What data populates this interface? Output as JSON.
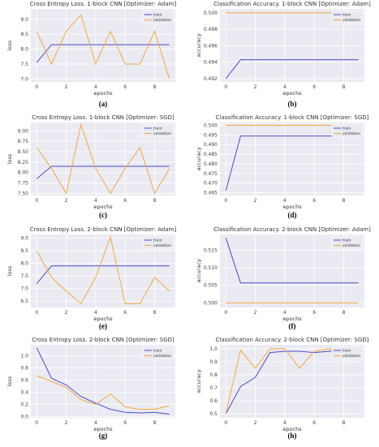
{
  "colors": {
    "train": "#4b4bc8",
    "validation": "#f5a93c",
    "plot_bg": "#eaeaf2",
    "grid": "#ffffff"
  },
  "chart_data": [
    {
      "type": "line",
      "title": "Cross Entropy Loss.  1-block CNN [Optimizer: Adam]",
      "xlabel": "epochs",
      "ylabel": "loss",
      "caption": "(a)",
      "xlim": [
        -0.4,
        9.4
      ],
      "ylim": [
        6.9,
        9.35
      ],
      "xticks": [
        0,
        2,
        4,
        6,
        8
      ],
      "xtick_labels": [
        "0",
        "2",
        "4",
        "6",
        "8"
      ],
      "yticks": [
        7.0,
        7.5,
        8.0,
        8.5,
        9.0
      ],
      "ytick_labels": [
        "7.0",
        "7.5",
        "8.0",
        "8.5",
        "9.0"
      ],
      "legend": {
        "position": "top-right",
        "labels": [
          "train",
          "validation"
        ]
      },
      "x": [
        0,
        1,
        2,
        3,
        4,
        5,
        6,
        7,
        8,
        9
      ],
      "series": [
        {
          "name": "train",
          "values": [
            7.55,
            8.15,
            8.15,
            8.15,
            8.15,
            8.15,
            8.15,
            8.15,
            8.15,
            8.15
          ]
        },
        {
          "name": "validation",
          "values": [
            8.6,
            7.5,
            8.6,
            9.15,
            7.5,
            8.6,
            7.5,
            7.5,
            8.6,
            7.0
          ]
        }
      ]
    },
    {
      "type": "line",
      "title": "Classification Accuracy.  1-block CNN [Optimizer: Adam]",
      "xlabel": "epochs",
      "ylabel": "accuracy",
      "caption": "(b)",
      "xlim": [
        -0.4,
        9.4
      ],
      "ylim": [
        0.9915,
        0.5002
      ],
      "xticks": [
        0,
        2,
        4,
        6,
        8
      ],
      "xtick_labels": [
        "0",
        "2",
        "4",
        "6",
        "8"
      ],
      "yticks": [
        0.492,
        0.494,
        0.496,
        0.498,
        0.5
      ],
      "ytick_labels": [
        "0.492",
        "0.494",
        "0.496",
        "0.498",
        "0.500"
      ],
      "legend": {
        "position": "top-right",
        "labels": [
          "train",
          "validation"
        ]
      },
      "x": [
        0,
        1,
        2,
        3,
        4,
        5,
        6,
        7,
        8,
        9
      ],
      "series": [
        {
          "name": "train",
          "values": [
            0.492,
            0.4943,
            0.4943,
            0.4943,
            0.4943,
            0.4943,
            0.4943,
            0.4943,
            0.4943,
            0.4943
          ]
        },
        {
          "name": "validation",
          "values": [
            0.5,
            0.5,
            0.5,
            0.5,
            0.5,
            0.5,
            0.5,
            0.5,
            0.5,
            0.5
          ]
        }
      ]
    },
    {
      "type": "line",
      "title": "Cross Entropy Loss.  1-block CNN [Optimizer: SGD]",
      "xlabel": "epochs",
      "ylabel": "loss",
      "caption": "(c)",
      "xlim": [
        -0.4,
        9.4
      ],
      "ylim": [
        7.45,
        9.2
      ],
      "xticks": [
        0,
        2,
        4,
        6,
        8
      ],
      "xtick_labels": [
        "0",
        "2",
        "4",
        "6",
        "8"
      ],
      "yticks": [
        7.5,
        7.75,
        8.0,
        8.25,
        8.5,
        8.75,
        9.0
      ],
      "ytick_labels": [
        "7.50",
        "7.75",
        "8.00",
        "8.25",
        "8.50",
        "8.75",
        "9.00"
      ],
      "legend": {
        "position": "top-right",
        "labels": [
          "train",
          "validation"
        ]
      },
      "x": [
        0,
        1,
        2,
        3,
        4,
        5,
        6,
        7,
        8,
        9
      ],
      "series": [
        {
          "name": "train",
          "values": [
            7.85,
            8.15,
            8.15,
            8.15,
            8.15,
            8.15,
            8.15,
            8.15,
            8.15,
            8.15
          ]
        },
        {
          "name": "validation",
          "values": [
            8.6,
            8.1,
            7.5,
            9.15,
            8.1,
            7.5,
            8.1,
            8.6,
            7.5,
            8.1
          ]
        }
      ]
    },
    {
      "type": "line",
      "title": "Classification Accuracy.  1-block CNN [Optimizer: SGD]",
      "xlabel": "epochs",
      "ylabel": "accuracy",
      "caption": "(d)",
      "xlim": [
        -0.4,
        9.4
      ],
      "ylim": [
        0.4635,
        0.5015
      ],
      "xticks": [
        0,
        2,
        4,
        6,
        8
      ],
      "xtick_labels": [
        "0",
        "2",
        "4",
        "6",
        "8"
      ],
      "yticks": [
        0.465,
        0.47,
        0.475,
        0.48,
        0.485,
        0.49,
        0.495,
        0.5
      ],
      "ytick_labels": [
        "0.465",
        "0.470",
        "0.475",
        "0.480",
        "0.485",
        "0.490",
        "0.495",
        "0.500"
      ],
      "legend": {
        "position": "top-right",
        "labels": [
          "train",
          "validation"
        ]
      },
      "x": [
        0,
        1,
        2,
        3,
        4,
        5,
        6,
        7,
        8,
        9
      ],
      "series": [
        {
          "name": "train",
          "values": [
            0.466,
            0.4945,
            0.4945,
            0.4945,
            0.4945,
            0.4945,
            0.4945,
            0.4945,
            0.4945,
            0.4945
          ]
        },
        {
          "name": "validation",
          "values": [
            0.5,
            0.5,
            0.5,
            0.5,
            0.5,
            0.5,
            0.5,
            0.5,
            0.5,
            0.5
          ]
        }
      ]
    },
    {
      "type": "line",
      "title": "Cross Entropy Loss.  2-block CNN [Optimizer: Adam]",
      "xlabel": "epochs",
      "ylabel": "loss",
      "caption": "(e)",
      "xlim": [
        -0.4,
        9.4
      ],
      "ylim": [
        6.25,
        9.15
      ],
      "xticks": [
        0,
        2,
        4,
        6,
        8
      ],
      "xtick_labels": [
        "0",
        "2",
        "4",
        "6",
        "8"
      ],
      "yticks": [
        6.5,
        7.0,
        7.5,
        8.0,
        8.5,
        9.0
      ],
      "ytick_labels": [
        "6.5",
        "7.0",
        "7.5",
        "8.0",
        "8.5",
        "9.0"
      ],
      "legend": {
        "position": "top-right",
        "labels": [
          "train",
          "validation"
        ]
      },
      "x": [
        0,
        1,
        2,
        3,
        4,
        5,
        6,
        7,
        8,
        9
      ],
      "series": [
        {
          "name": "train",
          "values": [
            7.2,
            7.9,
            7.9,
            7.9,
            7.9,
            7.9,
            7.9,
            7.9,
            7.9,
            7.9
          ]
        },
        {
          "name": "validation",
          "values": [
            8.5,
            7.45,
            6.9,
            6.4,
            7.45,
            9.05,
            6.4,
            6.4,
            7.45,
            6.9
          ]
        }
      ]
    },
    {
      "type": "line",
      "title": "Classification Accuracy.  2-block CNN [Optimizer: Adam]",
      "xlabel": "epochs",
      "ylabel": "accuracy",
      "caption": "(f)",
      "xlim": [
        -0.4,
        9.4
      ],
      "ylim": [
        0.4987,
        0.5195
      ],
      "xticks": [
        0,
        2,
        4,
        6,
        8
      ],
      "xtick_labels": [
        "0",
        "2",
        "4",
        "6",
        "8"
      ],
      "yticks": [
        0.5,
        0.505,
        0.51,
        0.515
      ],
      "ytick_labels": [
        "0.500",
        "0.505",
        "0.510",
        "0.515"
      ],
      "legend": {
        "position": "top-right",
        "labels": [
          "train",
          "validation"
        ]
      },
      "x": [
        0,
        1,
        2,
        3,
        4,
        5,
        6,
        7,
        8,
        9
      ],
      "series": [
        {
          "name": "train",
          "values": [
            0.5185,
            0.5057,
            0.5057,
            0.5057,
            0.5057,
            0.5057,
            0.5057,
            0.5057,
            0.5057,
            0.5057
          ]
        },
        {
          "name": "validation",
          "values": [
            0.5,
            0.5,
            0.5,
            0.5,
            0.5,
            0.5,
            0.5,
            0.5,
            0.5,
            0.5
          ]
        }
      ]
    },
    {
      "type": "line",
      "title": "Cross Entropy Loss.  2-block CNN [Optimizer: SGD]",
      "xlabel": "epochs",
      "ylabel": "loss",
      "caption": "(g)",
      "xlim": [
        -0.4,
        9.4
      ],
      "ylim": [
        -0.02,
        1.18
      ],
      "xticks": [
        0,
        2,
        4,
        6,
        8
      ],
      "xtick_labels": [
        "0",
        "2",
        "4",
        "6",
        "8"
      ],
      "yticks": [
        0.0,
        0.2,
        0.4,
        0.6,
        0.8,
        1.0
      ],
      "ytick_labels": [
        "0.0",
        "0.2",
        "0.4",
        "0.6",
        "0.8",
        "1.0"
      ],
      "legend": {
        "position": "top-right",
        "labels": [
          "train",
          "validation"
        ]
      },
      "x": [
        0,
        1,
        2,
        3,
        4,
        5,
        6,
        7,
        8,
        9
      ],
      "series": [
        {
          "name": "train",
          "values": [
            1.13,
            0.63,
            0.52,
            0.33,
            0.22,
            0.12,
            0.07,
            0.06,
            0.07,
            0.04
          ]
        },
        {
          "name": "validation",
          "values": [
            0.67,
            0.58,
            0.48,
            0.28,
            0.2,
            0.37,
            0.16,
            0.12,
            0.12,
            0.18
          ]
        }
      ]
    },
    {
      "type": "line",
      "title": "Classification Accuracy.  2-block CNN [Optimizer: SGD]",
      "xlabel": "epochs",
      "ylabel": "accuracy",
      "caption": "(h)",
      "xlim": [
        -0.4,
        9.4
      ],
      "ylim": [
        0.47,
        1.03
      ],
      "xticks": [
        0,
        2,
        4,
        6,
        8
      ],
      "xtick_labels": [
        "0",
        "2",
        "4",
        "6",
        "8"
      ],
      "yticks": [
        0.5,
        0.6,
        0.7,
        0.8,
        0.9,
        1.0
      ],
      "ytick_labels": [
        "0.5",
        "0.6",
        "0.7",
        "0.8",
        "0.9",
        "1.0"
      ],
      "legend": {
        "position": "right",
        "labels": [
          "train",
          "validation"
        ]
      },
      "x": [
        0,
        1,
        2,
        3,
        4,
        5,
        6,
        7,
        8,
        9
      ],
      "series": [
        {
          "name": "train",
          "values": [
            0.5,
            0.71,
            0.78,
            0.97,
            0.98,
            0.98,
            0.97,
            0.98,
            0.98,
            0.98
          ]
        },
        {
          "name": "validation",
          "values": [
            0.5,
            0.99,
            0.85,
            1.0,
            1.0,
            0.85,
            0.98,
            1.0,
            0.98,
            0.93
          ]
        }
      ]
    }
  ]
}
